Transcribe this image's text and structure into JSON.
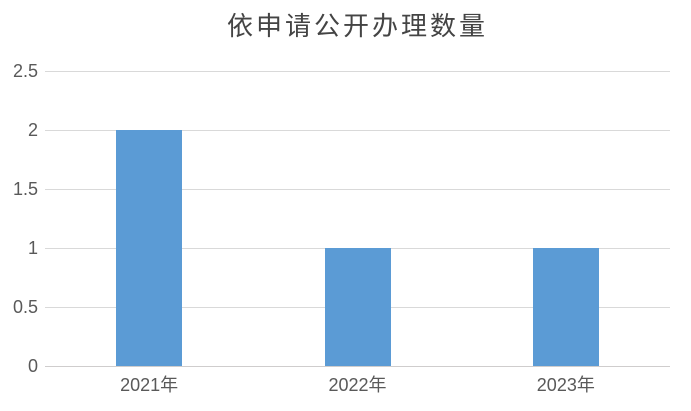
{
  "chart_data": {
    "type": "bar",
    "title": "依申请公开办理数量",
    "categories": [
      "2021年",
      "2022年",
      "2023年"
    ],
    "values": [
      2,
      1,
      1
    ],
    "ylim": [
      0,
      2.5
    ],
    "yticks": [
      0,
      0.5,
      1,
      1.5,
      2,
      2.5
    ],
    "grid": true,
    "legend": false,
    "colors": {
      "bar": "#5b9bd5",
      "gridline": "#d9d9d9",
      "axis_line": "#cfcdcd",
      "tick_label": "#595959",
      "title": "#444444",
      "background": "#ffffff"
    }
  }
}
